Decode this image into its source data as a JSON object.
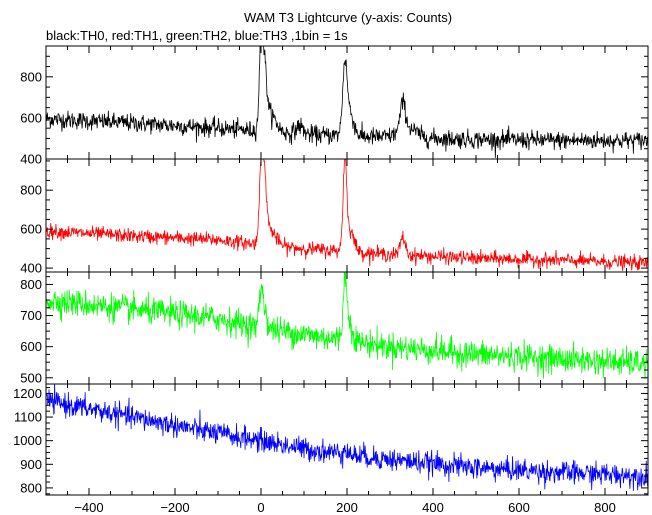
{
  "chart_data": {
    "type": "line",
    "title": "WAM T3 Lightcurve (y-axis: Counts)",
    "subtitle": "black:TH0, red:TH1, green:TH2, blue:TH3 ,1bin = 1s",
    "xlabel": "",
    "x_range": [
      -500,
      900
    ],
    "x_ticks": [
      -400,
      -200,
      0,
      200,
      400,
      600,
      800
    ],
    "x_tick_labels": [
      "−400",
      "−200",
      "0",
      "200",
      "400",
      "600",
      "800"
    ],
    "bin_seconds": 1,
    "grid": false,
    "series": [
      {
        "name": "TH0",
        "color": "#000000",
        "ylim": [
          400,
          950
        ],
        "y_ticks": [
          400,
          600,
          800
        ],
        "y_tick_labels": [
          "400",
          "600",
          "800"
        ],
        "baseline": [
          [
            -500,
            595
          ],
          [
            -300,
            575
          ],
          [
            -100,
            550
          ],
          [
            0,
            535
          ],
          [
            100,
            520
          ],
          [
            300,
            505
          ],
          [
            500,
            495
          ],
          [
            700,
            490
          ],
          [
            900,
            490
          ]
        ],
        "noise": 22,
        "peaks": [
          {
            "x": 0,
            "height": 380,
            "sigma": 4
          },
          {
            "x": 8,
            "height": 270,
            "sigma": 5
          },
          {
            "x": 20,
            "height": 90,
            "sigma": 14
          },
          {
            "x": 90,
            "height": 40,
            "sigma": 8
          },
          {
            "x": 195,
            "height": 300,
            "sigma": 5
          },
          {
            "x": 205,
            "height": 120,
            "sigma": 10
          },
          {
            "x": 330,
            "height": 130,
            "sigma": 6
          },
          {
            "x": 340,
            "height": 50,
            "sigma": 20
          }
        ]
      },
      {
        "name": "TH1",
        "color": "#ff0000",
        "ylim": [
          380,
          960
        ],
        "y_ticks": [
          400,
          600,
          800
        ],
        "y_tick_labels": [
          "400",
          "600",
          "800"
        ],
        "baseline": [
          [
            -500,
            590
          ],
          [
            -300,
            565
          ],
          [
            -100,
            545
          ],
          [
            0,
            520
          ],
          [
            100,
            500
          ],
          [
            300,
            470
          ],
          [
            500,
            450
          ],
          [
            700,
            440
          ],
          [
            900,
            425
          ]
        ],
        "noise": 18,
        "peaks": [
          {
            "x": 0,
            "height": 360,
            "sigma": 4
          },
          {
            "x": 8,
            "height": 300,
            "sigma": 5
          },
          {
            "x": 20,
            "height": 80,
            "sigma": 14
          },
          {
            "x": 195,
            "height": 420,
            "sigma": 4
          },
          {
            "x": 205,
            "height": 120,
            "sigma": 10
          },
          {
            "x": 330,
            "height": 90,
            "sigma": 6
          }
        ]
      },
      {
        "name": "TH2",
        "color": "#00ff00",
        "ylim": [
          480,
          840
        ],
        "y_ticks": [
          500,
          600,
          700,
          800
        ],
        "y_tick_labels": [
          "500",
          "600",
          "700",
          "800"
        ],
        "baseline": [
          [
            -500,
            750
          ],
          [
            -300,
            720
          ],
          [
            -100,
            690
          ],
          [
            0,
            660
          ],
          [
            100,
            640
          ],
          [
            300,
            600
          ],
          [
            500,
            575
          ],
          [
            700,
            560
          ],
          [
            900,
            545
          ]
        ],
        "noise": 22,
        "peaks": [
          {
            "x": 0,
            "height": 110,
            "sigma": 4
          },
          {
            "x": 8,
            "height": 60,
            "sigma": 6
          },
          {
            "x": 195,
            "height": 190,
            "sigma": 4
          },
          {
            "x": 205,
            "height": 60,
            "sigma": 8
          }
        ]
      },
      {
        "name": "TH3",
        "color": "#0000ff",
        "ylim": [
          770,
          1240
        ],
        "y_ticks": [
          800,
          900,
          1000,
          1100,
          1200
        ],
        "y_tick_labels": [
          "800",
          "900",
          "1000",
          "1100",
          "1200"
        ],
        "baseline": [
          [
            -500,
            1170
          ],
          [
            -300,
            1100
          ],
          [
            -100,
            1030
          ],
          [
            0,
            1000
          ],
          [
            100,
            965
          ],
          [
            300,
            920
          ],
          [
            500,
            885
          ],
          [
            700,
            865
          ],
          [
            900,
            850
          ]
        ],
        "noise": 24,
        "peaks": [
          {
            "x": 195,
            "height": 40,
            "sigma": 3
          }
        ]
      }
    ]
  }
}
